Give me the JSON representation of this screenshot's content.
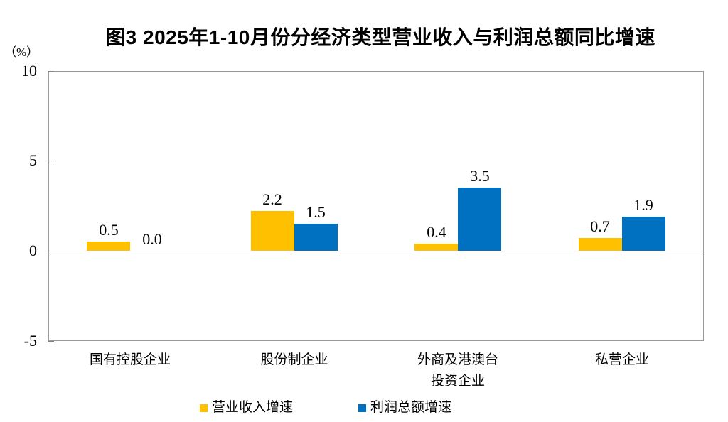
{
  "page": {
    "background": "#FFFFFF"
  },
  "chart_data": {
    "type": "bar",
    "title": "图3 2025年1-10月份分经济类型营业收入与利润总额同比增速",
    "ylabel": "（%）",
    "xlabel": "",
    "categories": [
      "国有控股企业",
      "股份制企业",
      "外商及港澳台\n投资企业",
      "私营企业"
    ],
    "series": [
      {
        "name": "营业收入增速",
        "color": "#FFC000",
        "values": [
          0.5,
          2.2,
          0.4,
          0.7
        ]
      },
      {
        "name": "利润总额增速",
        "color": "#0070C0",
        "values": [
          0.0,
          1.5,
          3.5,
          1.9
        ]
      }
    ],
    "ylim": [
      -5,
      10
    ],
    "yticks": [
      10,
      5,
      0,
      -5
    ],
    "value_label_decimals": 1,
    "grid": false,
    "legend_position": "bottom",
    "axis_color": "#9B9B9B",
    "zero_line_color": "#808080"
  }
}
